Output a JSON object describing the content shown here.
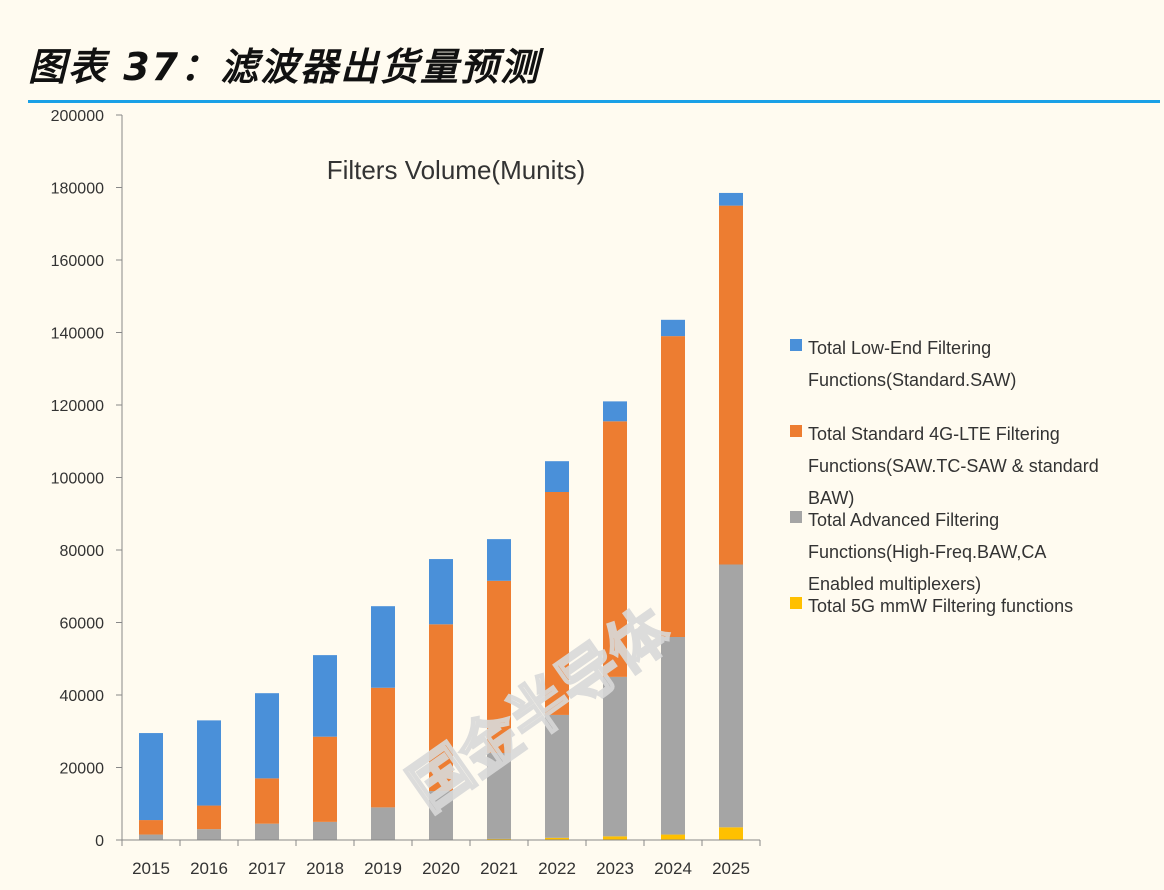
{
  "figure_title": "图表 37：滤波器出货量预测",
  "watermark": "国金半导体",
  "colors": {
    "background": "#fffbf0",
    "rule": "#1aa0e6",
    "low_end": "#4a90d9",
    "standard_4g_lte": "#ed7d31",
    "advanced": "#a5a5a5",
    "mmw_5g": "#ffc000"
  },
  "chart_data": {
    "type": "bar",
    "stacked": true,
    "title": "Filters Volume(Munits)",
    "xlabel": "",
    "ylabel": "",
    "categories": [
      "2015",
      "2016",
      "2017",
      "2018",
      "2019",
      "2020",
      "2021",
      "2022",
      "2023",
      "2024",
      "2025"
    ],
    "ylim": [
      0,
      200000
    ],
    "yticks": [
      0,
      20000,
      40000,
      60000,
      80000,
      100000,
      120000,
      140000,
      160000,
      180000,
      200000
    ],
    "grid": false,
    "legend_position": "right",
    "series": [
      {
        "name": "Total 5G mmW Filtering functions",
        "color": "#ffc000",
        "values": [
          0,
          0,
          0,
          0,
          0,
          0,
          300,
          600,
          1000,
          1500,
          3500
        ]
      },
      {
        "name": "Total Advanced Filtering Functions(High-Freq.BAW,CA Enabled multiplexers)",
        "color": "#a5a5a5",
        "values": [
          1500,
          3000,
          4500,
          5000,
          9000,
          13500,
          23700,
          33900,
          44000,
          54500,
          72500
        ]
      },
      {
        "name": "Total Standard 4G-LTE Filtering Functions(SAW.TC-SAW & standard BAW)",
        "color": "#ed7d31",
        "values": [
          4000,
          6500,
          12500,
          23500,
          33000,
          46000,
          47500,
          61500,
          70500,
          83000,
          99000
        ]
      },
      {
        "name": "Total Low-End Filtering Functions(Standard.SAW)",
        "color": "#4a90d9",
        "values": [
          24000,
          23500,
          23500,
          22500,
          22500,
          18000,
          11500,
          8500,
          5500,
          4500,
          3500
        ]
      }
    ],
    "legend": [
      {
        "lines": [
          "Total Low-End Filtering",
          "Functions(Standard.SAW)"
        ],
        "color": "#4a90d9"
      },
      {
        "lines": [
          "Total Standard 4G-LTE Filtering",
          "Functions(SAW.TC-SAW & standard",
          "BAW)"
        ],
        "color": "#ed7d31"
      },
      {
        "lines": [
          "Total Advanced Filtering",
          "Functions(High-Freq.BAW,CA",
          "Enabled multiplexers)"
        ],
        "color": "#a5a5a5"
      },
      {
        "lines": [
          "Total 5G mmW Filtering functions"
        ],
        "color": "#ffc000"
      }
    ]
  }
}
